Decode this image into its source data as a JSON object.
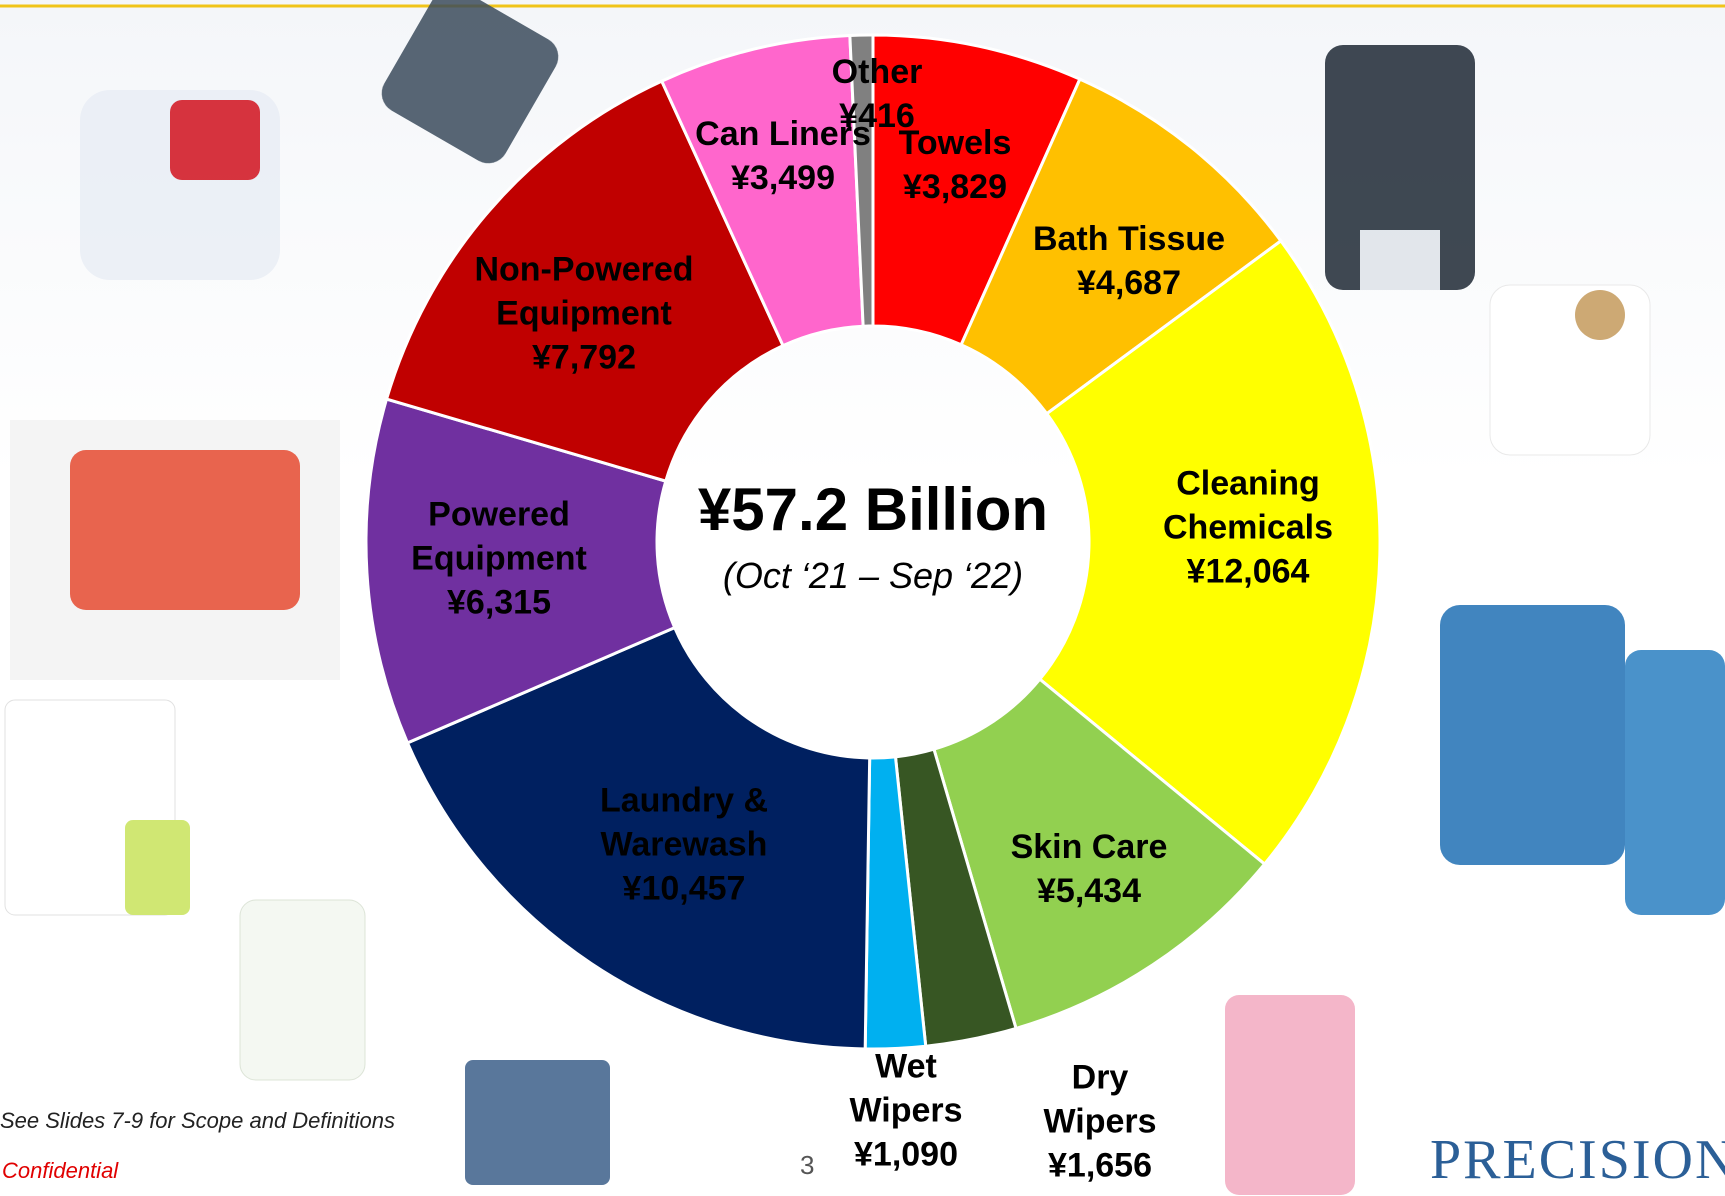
{
  "chart_data": {
    "type": "donut",
    "center_title": "¥57.2 Billion",
    "center_subtitle": "(Oct ‘21 – Sep ‘22)",
    "categories": [
      "Towels",
      "Bath Tissue",
      "Cleaning Chemicals",
      "Skin Care",
      "Dry Wipers",
      "Wet Wipers",
      "Laundry & Warewash",
      "Powered Equipment",
      "Non-Powered Equipment",
      "Can Liners",
      "Other"
    ],
    "values": [
      3829,
      4687,
      12064,
      5434,
      1656,
      1090,
      10457,
      6315,
      7792,
      3499,
      416
    ],
    "value_labels": [
      "¥3,829",
      "¥4,687",
      "¥12,064",
      "¥5,434",
      "¥1,656",
      "¥1,090",
      "¥10,457",
      "¥6,315",
      "¥7,792",
      "¥3,499",
      "¥416"
    ],
    "colors": [
      "#ff0000",
      "#ffc000",
      "#ffff00",
      "#92d050",
      "#375623",
      "#00b0f0",
      "#002060",
      "#7030a0",
      "#c00000",
      "#ff66cc",
      "#808080"
    ]
  },
  "footer": {
    "note": "See Slides 7-9 for Scope and Definitions",
    "confidential": "Confidential",
    "page": "3",
    "logo": "PRECISION"
  }
}
